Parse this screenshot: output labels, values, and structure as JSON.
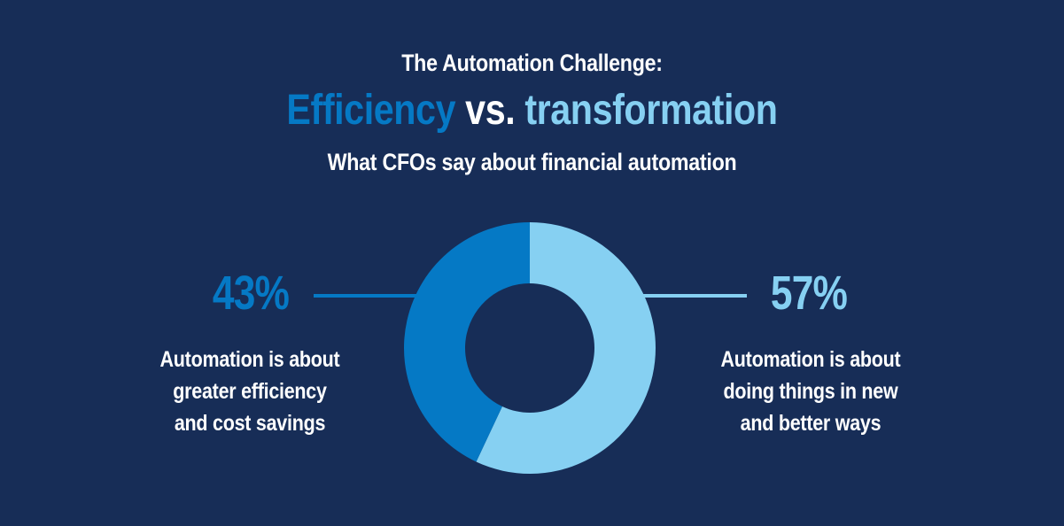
{
  "colors": {
    "background": "#172d57",
    "efficiency": "#0579c5",
    "transformation": "#86d0f2",
    "text": "#ffffff"
  },
  "header": {
    "line1": "The Automation Challenge:",
    "efficiency_word": "Efficiency",
    "vs_word": "vs.",
    "transformation_word": "transformation",
    "subtitle": "What CFOs say about financial automation"
  },
  "left_callout": {
    "percent_label": "43%",
    "desc_lines": [
      "Automation is about",
      "greater efficiency",
      "and cost savings"
    ]
  },
  "right_callout": {
    "percent_label": "57%",
    "desc_lines": [
      "Automation is about",
      "doing things in new",
      "and better ways"
    ]
  },
  "chart_data": {
    "type": "pie",
    "title": "",
    "categories": [
      "Automation is about greater efficiency and cost savings",
      "Automation is about doing things in new and better ways"
    ],
    "values": [
      43,
      57
    ],
    "unit": "%",
    "colors": [
      "#0579c5",
      "#86d0f2"
    ]
  }
}
